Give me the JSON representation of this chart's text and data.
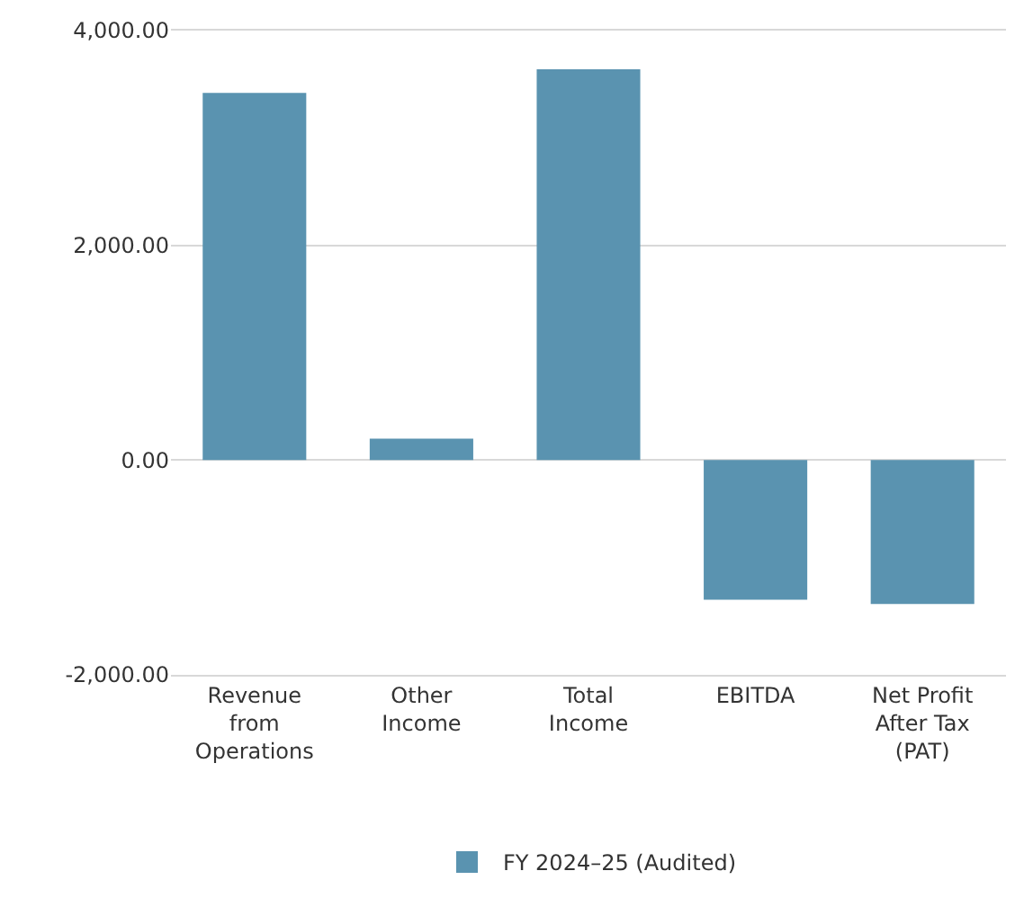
{
  "chart_data": {
    "type": "bar",
    "categories": [
      "Revenue from Operations",
      "Other Income",
      "Total Income",
      "EBITDA",
      "Net Profit After Tax (PAT)"
    ],
    "series": [
      {
        "name": "FY 2024–25 (Audited)",
        "color": "#5a93b0",
        "values": [
          3420,
          200,
          3640,
          -1300,
          -1340
        ]
      }
    ],
    "ylim": [
      -2000,
      4000
    ],
    "yticks": [
      {
        "value": -2000,
        "label": "-2,000.00"
      },
      {
        "value": 0,
        "label": "0.00"
      },
      {
        "value": 2000,
        "label": "2,000.00"
      },
      {
        "value": 4000,
        "label": "4,000.00"
      }
    ],
    "grid": "y",
    "legend": "bottom"
  }
}
